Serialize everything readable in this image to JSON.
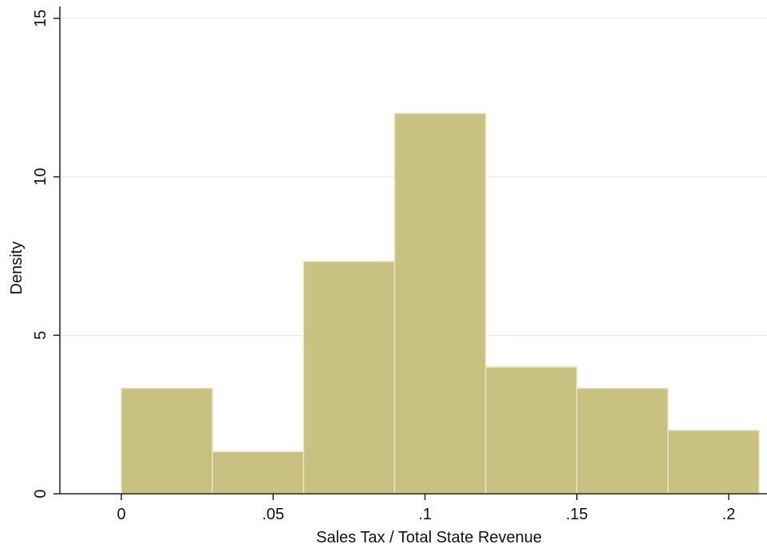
{
  "chart_data": {
    "type": "histogram",
    "title": "",
    "xlabel": "Sales Tax / Total State Revenue",
    "ylabel": "Density",
    "xlim": [
      -0.02,
      0.21
    ],
    "ylim": [
      0,
      15
    ],
    "grid": "horizontal",
    "x_ticks": [
      {
        "value": 0,
        "label": "0"
      },
      {
        "value": 0.05,
        "label": ".05"
      },
      {
        "value": 0.1,
        "label": ".1"
      },
      {
        "value": 0.15,
        "label": ".15"
      },
      {
        "value": 0.2,
        "label": ".2"
      }
    ],
    "y_ticks": [
      {
        "value": 0,
        "label": "0"
      },
      {
        "value": 5,
        "label": "5"
      },
      {
        "value": 10,
        "label": "10"
      },
      {
        "value": 15,
        "label": "15"
      }
    ],
    "bins": [
      {
        "x0": 0.0,
        "x1": 0.03,
        "density": 3.33
      },
      {
        "x0": 0.03,
        "x1": 0.06,
        "density": 1.33
      },
      {
        "x0": 0.06,
        "x1": 0.09,
        "density": 7.33
      },
      {
        "x0": 0.09,
        "x1": 0.12,
        "density": 12.0
      },
      {
        "x0": 0.12,
        "x1": 0.15,
        "density": 4.0
      },
      {
        "x0": 0.15,
        "x1": 0.18,
        "density": 3.33
      },
      {
        "x0": 0.18,
        "x1": 0.21,
        "density": 2.0
      }
    ],
    "colors": {
      "bar_fill": "#C9C17F",
      "bar_edge": "#E9E4C4",
      "grid": "#E7EEF0",
      "axis": "#222222"
    }
  }
}
